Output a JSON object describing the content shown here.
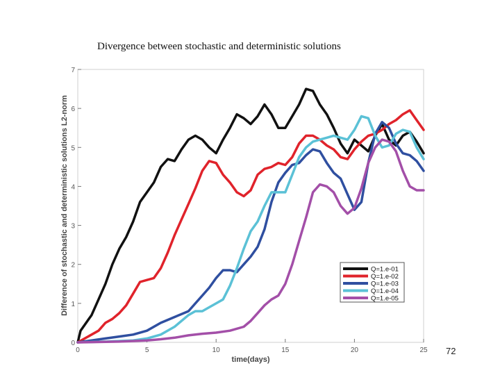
{
  "slide": {
    "title": "Divergence between stochastic and deterministic solutions",
    "page_number": "72"
  },
  "chart_data": {
    "type": "line",
    "title": "Divergence between stochastic and deterministic solutions",
    "xlabel": "time(days)",
    "ylabel": "Difference of stochastic and deterministic solutions L2-norm",
    "xlim": [
      0,
      25
    ],
    "ylim": [
      0,
      7
    ],
    "x_ticks": [
      0,
      5,
      10,
      15,
      20,
      25
    ],
    "y_ticks": [
      0,
      1,
      2,
      3,
      4,
      5,
      6,
      7
    ],
    "grid": false,
    "legend_position": "lower-right",
    "series": [
      {
        "name": "Q=1.e-01",
        "color": "#111111",
        "points": [
          [
            0,
            0
          ],
          [
            0.2,
            0.3
          ],
          [
            0.5,
            0.45
          ],
          [
            1,
            0.7
          ],
          [
            1.5,
            1.1
          ],
          [
            2,
            1.5
          ],
          [
            2.5,
            2.0
          ],
          [
            3,
            2.4
          ],
          [
            3.5,
            2.7
          ],
          [
            4,
            3.1
          ],
          [
            4.5,
            3.6
          ],
          [
            5,
            3.85
          ],
          [
            5.5,
            4.1
          ],
          [
            6,
            4.5
          ],
          [
            6.5,
            4.7
          ],
          [
            7,
            4.65
          ],
          [
            7.5,
            4.95
          ],
          [
            8,
            5.2
          ],
          [
            8.5,
            5.3
          ],
          [
            9,
            5.2
          ],
          [
            9.5,
            5.0
          ],
          [
            10,
            4.85
          ],
          [
            10.5,
            5.2
          ],
          [
            11,
            5.5
          ],
          [
            11.5,
            5.85
          ],
          [
            12,
            5.75
          ],
          [
            12.5,
            5.6
          ],
          [
            13,
            5.8
          ],
          [
            13.5,
            6.1
          ],
          [
            14,
            5.85
          ],
          [
            14.5,
            5.5
          ],
          [
            15,
            5.5
          ],
          [
            15.5,
            5.8
          ],
          [
            16,
            6.1
          ],
          [
            16.5,
            6.5
          ],
          [
            17,
            6.45
          ],
          [
            17.5,
            6.1
          ],
          [
            18,
            5.85
          ],
          [
            18.5,
            5.5
          ],
          [
            19,
            5.1
          ],
          [
            19.5,
            4.85
          ],
          [
            20,
            5.2
          ],
          [
            20.5,
            5.05
          ],
          [
            21,
            4.9
          ],
          [
            21.5,
            5.3
          ],
          [
            22,
            5.6
          ],
          [
            22.5,
            5.2
          ],
          [
            23,
            5.05
          ],
          [
            23.5,
            5.3
          ],
          [
            24,
            5.4
          ],
          [
            24.5,
            5.15
          ],
          [
            25,
            4.85
          ]
        ]
      },
      {
        "name": "Q=1.e-02",
        "color": "#e0232b",
        "points": [
          [
            0,
            0
          ],
          [
            0.5,
            0.1
          ],
          [
            1,
            0.2
          ],
          [
            1.5,
            0.3
          ],
          [
            2,
            0.5
          ],
          [
            2.5,
            0.6
          ],
          [
            3,
            0.75
          ],
          [
            3.5,
            0.95
          ],
          [
            4,
            1.25
          ],
          [
            4.5,
            1.55
          ],
          [
            5,
            1.6
          ],
          [
            5.5,
            1.65
          ],
          [
            6,
            1.9
          ],
          [
            6.5,
            2.3
          ],
          [
            7,
            2.75
          ],
          [
            7.5,
            3.15
          ],
          [
            8,
            3.55
          ],
          [
            8.5,
            3.95
          ],
          [
            9,
            4.4
          ],
          [
            9.5,
            4.65
          ],
          [
            10,
            4.6
          ],
          [
            10.5,
            4.3
          ],
          [
            11,
            4.1
          ],
          [
            11.5,
            3.85
          ],
          [
            12,
            3.75
          ],
          [
            12.5,
            3.9
          ],
          [
            13,
            4.3
          ],
          [
            13.5,
            4.45
          ],
          [
            14,
            4.5
          ],
          [
            14.5,
            4.6
          ],
          [
            15,
            4.55
          ],
          [
            15.5,
            4.75
          ],
          [
            16,
            5.1
          ],
          [
            16.5,
            5.3
          ],
          [
            17,
            5.3
          ],
          [
            17.5,
            5.2
          ],
          [
            18,
            5.05
          ],
          [
            18.5,
            4.95
          ],
          [
            19,
            4.75
          ],
          [
            19.5,
            4.7
          ],
          [
            20,
            4.95
          ],
          [
            20.5,
            5.15
          ],
          [
            21,
            5.3
          ],
          [
            21.5,
            5.35
          ],
          [
            22,
            5.45
          ],
          [
            22.5,
            5.6
          ],
          [
            23,
            5.7
          ],
          [
            23.5,
            5.85
          ],
          [
            24,
            5.95
          ],
          [
            24.5,
            5.7
          ],
          [
            25,
            5.45
          ]
        ]
      },
      {
        "name": "Q=1.e-03",
        "color": "#2f4fa0",
        "points": [
          [
            0,
            0
          ],
          [
            1,
            0.05
          ],
          [
            2,
            0.1
          ],
          [
            3,
            0.15
          ],
          [
            4,
            0.2
          ],
          [
            5,
            0.3
          ],
          [
            6,
            0.5
          ],
          [
            7,
            0.65
          ],
          [
            8,
            0.8
          ],
          [
            8.5,
            1.0
          ],
          [
            9,
            1.2
          ],
          [
            9.5,
            1.4
          ],
          [
            10,
            1.65
          ],
          [
            10.5,
            1.85
          ],
          [
            11,
            1.85
          ],
          [
            11.5,
            1.8
          ],
          [
            12,
            2.0
          ],
          [
            12.5,
            2.2
          ],
          [
            13,
            2.45
          ],
          [
            13.5,
            2.9
          ],
          [
            14,
            3.6
          ],
          [
            14.5,
            4.1
          ],
          [
            15,
            4.35
          ],
          [
            15.5,
            4.55
          ],
          [
            16,
            4.6
          ],
          [
            16.5,
            4.8
          ],
          [
            17,
            4.95
          ],
          [
            17.5,
            4.9
          ],
          [
            18,
            4.6
          ],
          [
            18.5,
            4.35
          ],
          [
            19,
            4.2
          ],
          [
            19.5,
            3.8
          ],
          [
            20,
            3.4
          ],
          [
            20.5,
            3.6
          ],
          [
            21,
            4.6
          ],
          [
            21.5,
            5.35
          ],
          [
            22,
            5.65
          ],
          [
            22.5,
            5.5
          ],
          [
            23,
            5.1
          ],
          [
            23.5,
            4.85
          ],
          [
            24,
            4.8
          ],
          [
            24.5,
            4.65
          ],
          [
            25,
            4.4
          ]
        ]
      },
      {
        "name": "Q=1.e-04",
        "color": "#5bc1d6",
        "points": [
          [
            0,
            0
          ],
          [
            2,
            0.02
          ],
          [
            4,
            0.05
          ],
          [
            5,
            0.1
          ],
          [
            6,
            0.2
          ],
          [
            7,
            0.4
          ],
          [
            8,
            0.7
          ],
          [
            8.5,
            0.8
          ],
          [
            9,
            0.8
          ],
          [
            9.5,
            0.9
          ],
          [
            10,
            1.0
          ],
          [
            10.5,
            1.1
          ],
          [
            11,
            1.45
          ],
          [
            11.5,
            1.9
          ],
          [
            12,
            2.4
          ],
          [
            12.5,
            2.85
          ],
          [
            13,
            3.1
          ],
          [
            13.5,
            3.5
          ],
          [
            14,
            3.85
          ],
          [
            14.5,
            3.85
          ],
          [
            15,
            3.85
          ],
          [
            15.5,
            4.3
          ],
          [
            16,
            4.75
          ],
          [
            16.5,
            5.0
          ],
          [
            17,
            5.15
          ],
          [
            17.5,
            5.2
          ],
          [
            18,
            5.25
          ],
          [
            18.5,
            5.3
          ],
          [
            19,
            5.25
          ],
          [
            19.5,
            5.2
          ],
          [
            20,
            5.45
          ],
          [
            20.5,
            5.8
          ],
          [
            21,
            5.75
          ],
          [
            21.5,
            5.3
          ],
          [
            22,
            5.0
          ],
          [
            22.5,
            5.05
          ],
          [
            23,
            5.35
          ],
          [
            23.5,
            5.45
          ],
          [
            24,
            5.4
          ],
          [
            24.5,
            5.0
          ],
          [
            25,
            4.7
          ]
        ]
      },
      {
        "name": "Q=1.e-05",
        "color": "#a34fa8",
        "points": [
          [
            0,
            0
          ],
          [
            3,
            0.02
          ],
          [
            5,
            0.05
          ],
          [
            6,
            0.08
          ],
          [
            7,
            0.12
          ],
          [
            8,
            0.18
          ],
          [
            9,
            0.22
          ],
          [
            10,
            0.25
          ],
          [
            11,
            0.3
          ],
          [
            12,
            0.4
          ],
          [
            12.5,
            0.55
          ],
          [
            13,
            0.75
          ],
          [
            13.5,
            0.95
          ],
          [
            14,
            1.1
          ],
          [
            14.5,
            1.2
          ],
          [
            15,
            1.5
          ],
          [
            15.5,
            2.0
          ],
          [
            16,
            2.6
          ],
          [
            16.5,
            3.2
          ],
          [
            17,
            3.85
          ],
          [
            17.5,
            4.05
          ],
          [
            18,
            4.0
          ],
          [
            18.5,
            3.85
          ],
          [
            19,
            3.5
          ],
          [
            19.5,
            3.3
          ],
          [
            20,
            3.45
          ],
          [
            20.5,
            3.95
          ],
          [
            21,
            4.6
          ],
          [
            21.5,
            5.0
          ],
          [
            22,
            5.2
          ],
          [
            22.5,
            5.15
          ],
          [
            23,
            4.9
          ],
          [
            23.5,
            4.4
          ],
          [
            24,
            4.0
          ],
          [
            24.5,
            3.9
          ],
          [
            25,
            3.9
          ]
        ]
      }
    ]
  }
}
